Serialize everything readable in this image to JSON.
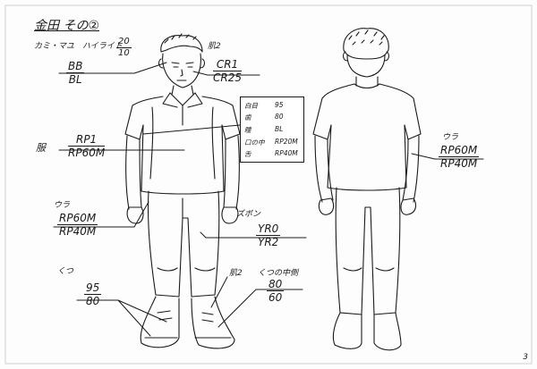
{
  "sheet": {
    "title": "金田 その②",
    "page_number": "3",
    "hair": {
      "label": "カミ・マユ",
      "highlight_label": "ハイライト",
      "highlight_frac": {
        "num": "20",
        "den": "10"
      },
      "frac": {
        "num": "BB",
        "den": "BL"
      }
    },
    "skin": {
      "label": "肌2",
      "frac": {
        "num": "CR1",
        "den": "CR25"
      }
    },
    "table": {
      "rows": [
        {
          "key": "白目",
          "value": "95"
        },
        {
          "key": "歯",
          "value": "80"
        },
        {
          "key": "瞳",
          "value": "BL"
        },
        {
          "key": "口の中",
          "value": "RP20M"
        },
        {
          "key": "舌",
          "value": "RP40M"
        }
      ]
    },
    "shirt": {
      "label": "服",
      "frac": {
        "num": "RP1",
        "den": "RP60M"
      }
    },
    "back_shirt": {
      "label": "ウラ",
      "frac": {
        "num": "RP60M",
        "den": "RP40M"
      }
    },
    "inner": {
      "label": "ウラ",
      "frac": {
        "num": "RP60M",
        "den": "RP40M"
      }
    },
    "pants": {
      "label": "ズボン",
      "frac": {
        "num": "YR0",
        "den": "YR2"
      }
    },
    "shoes": {
      "label": "くつ",
      "frac": {
        "num": "95",
        "den": "80"
      }
    },
    "skin2": {
      "label": "肌2"
    },
    "shoe_inner": {
      "label": "くつの中側",
      "frac": {
        "num": "80",
        "den": "60"
      }
    }
  }
}
